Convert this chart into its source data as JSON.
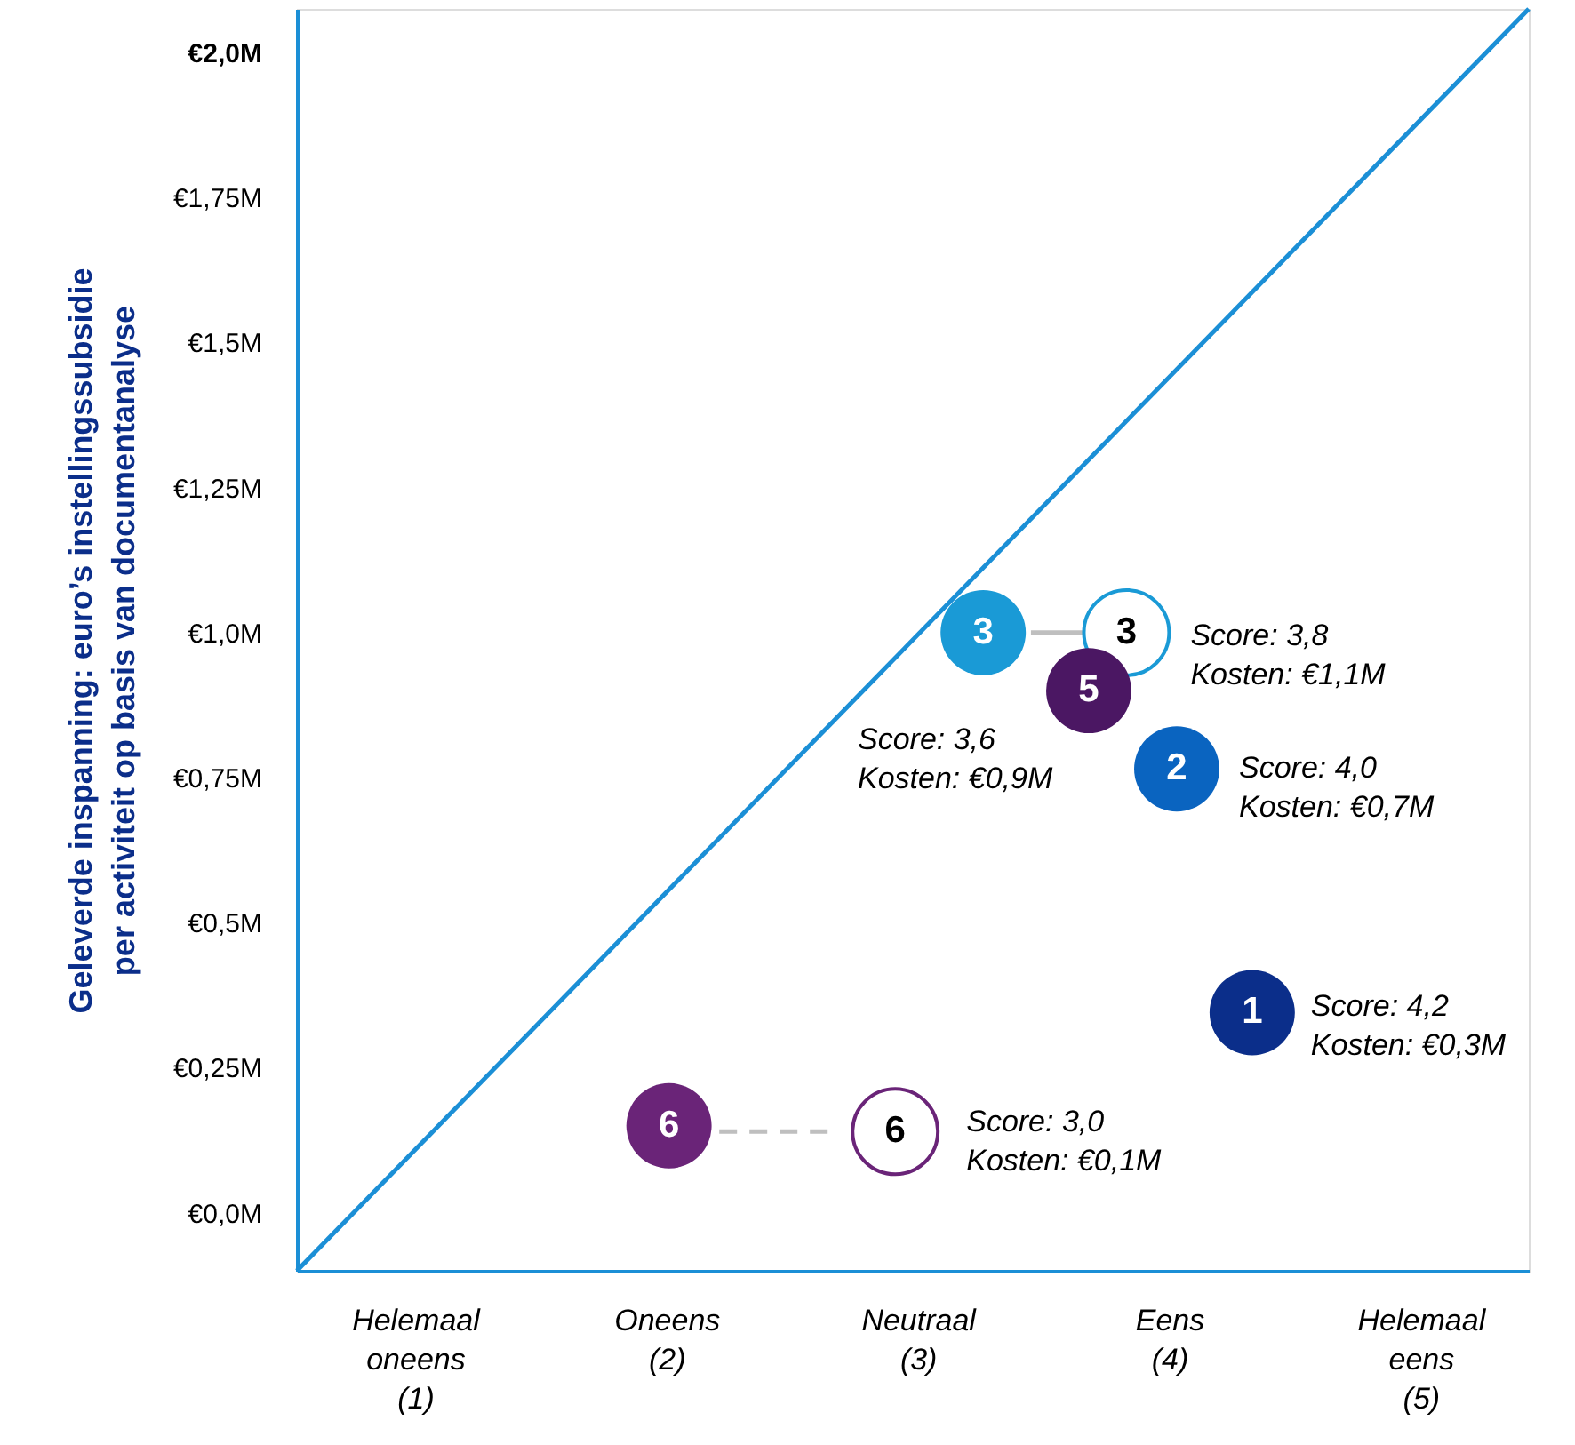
{
  "chart_data": {
    "type": "scatter",
    "ylabel": "Geleverde inspanning: euro’s instellingssubsidie\nper activiteit op basis van documentanalyse",
    "xlim": [
      0.53,
      5.43
    ],
    "ylim": [
      -0.1,
      2.075
    ],
    "xticks": [
      {
        "value": 1,
        "label": "Helemaal\noneens\n(1)"
      },
      {
        "value": 2,
        "label": "Oneens\n\n(2)"
      },
      {
        "value": 3,
        "label": "Neutraal\n\n(3)"
      },
      {
        "value": 4,
        "label": "Eens\n\n(4)"
      },
      {
        "value": 5,
        "label": "Helemaal\neens\n(5)"
      }
    ],
    "yticks": [
      {
        "value": 0,
        "label": "€0,0M"
      },
      {
        "value": 0.25,
        "label": "€0,25M"
      },
      {
        "value": 0.5,
        "label": "€0,5M"
      },
      {
        "value": 0.75,
        "label": "€0,75M"
      },
      {
        "value": 1.0,
        "label": "€1,0M"
      },
      {
        "value": 1.25,
        "label": "€1,25M"
      },
      {
        "value": 1.5,
        "label": "€1,5M"
      },
      {
        "value": 1.75,
        "label": "€1,75M"
      },
      {
        "value": 2.0,
        "label": "€2,0M"
      }
    ],
    "grid": false,
    "marker": "circle",
    "series": [
      {
        "type": "line",
        "marker": "none",
        "line_style": "solid",
        "color": "#1b8fd6",
        "x": [
          0.53,
          5.43
        ],
        "values": [
          -0.1,
          2.075
        ]
      },
      {
        "type": "line",
        "marker": "none",
        "line_style": "solid",
        "color": "#bfbfbf",
        "x": [
          3.66,
          3.45
        ],
        "values": [
          1.0,
          1.0
        ]
      },
      {
        "type": "line",
        "marker": "none",
        "line_style": "dashed",
        "color": "#bfbfbf",
        "x": [
          2.67,
          2.21
        ],
        "values": [
          0.14,
          0.14
        ]
      },
      {
        "color": "#ffffff",
        "x": [
          3.83,
          2.91
        ],
        "values": [
          1.0,
          0.14
        ],
        "colors": [
          "#1a9ad6",
          "#6a2478"
        ]
      },
      {
        "x": [
          3.26,
          3.68,
          4.03,
          4.33,
          2.01
        ],
        "values": [
          1.0,
          0.9,
          0.765,
          0.345,
          0.15
        ],
        "colors": [
          "#1a9ad6",
          "#4b1763",
          "#0a64c0",
          "#0b2e8a",
          "#6a2478"
        ]
      }
    ],
    "annotations": [
      {
        "text": "3",
        "x": 3.83,
        "y": 1.0
      },
      {
        "text": "6",
        "x": 2.91,
        "y": 0.14
      },
      {
        "text": "3",
        "x": 3.26,
        "y": 1.0
      },
      {
        "text": "5",
        "x": 3.68,
        "y": 0.9
      },
      {
        "text": "2",
        "x": 4.03,
        "y": 0.765
      },
      {
        "text": "1",
        "x": 4.33,
        "y": 0.345
      },
      {
        "text": "6",
        "x": 2.01,
        "y": 0.15
      },
      {
        "text": "Score: 3,8\nKosten: €1,1M",
        "x": 3.83,
        "y": 1.0
      },
      {
        "text": "Score: 3,6\nKosten: €0,9M",
        "x": 3.68,
        "y": 0.9
      },
      {
        "text": "Score: 4,0\nKosten: €0,7M",
        "x": 4.03,
        "y": 0.765
      },
      {
        "text": "Score: 4,2\nKosten: €0,3M",
        "x": 4.33,
        "y": 0.345
      },
      {
        "text": "Score: 3,0\nKosten: €0,1M",
        "x": 2.91,
        "y": 0.14
      }
    ]
  }
}
